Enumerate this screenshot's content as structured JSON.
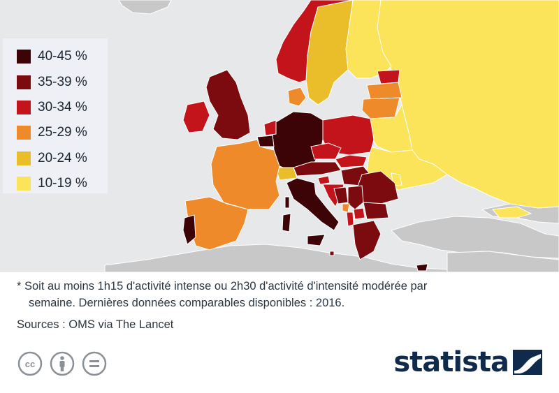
{
  "colors": {
    "sea": "#e7e8ea",
    "non_data_land": "#c8c8c8",
    "border": "#ffffff",
    "text": "#2b3640",
    "brand": "#0f2a4a"
  },
  "legend": [
    {
      "label": "40-45 %",
      "color": "#3d0407"
    },
    {
      "label": "35-39 %",
      "color": "#7b0b0f"
    },
    {
      "label": "30-34 %",
      "color": "#c3141c"
    },
    {
      "label": "25-29 %",
      "color": "#ef8a2a"
    },
    {
      "label": "20-24 %",
      "color": "#e9be2a"
    },
    {
      "label": "10-19 %",
      "color": "#fbe35a"
    }
  ],
  "footnote": {
    "line1": "* Soit au moins 1h15 d'activité intense ou 2h30 d'activité d'intensité modérée par",
    "line2": "semaine. Dernières données comparables disponibles : 2016."
  },
  "sources": "Sources : OMS via The Lancet",
  "brand": "statista",
  "license_icons": [
    "creative-commons-icon",
    "attribution-icon",
    "no-derivatives-icon"
  ],
  "map_categories": {
    "Germany": "40-45 %",
    "Italy": "40-45 %",
    "Portugal": "40-45 %",
    "Belgium": "40-45 %",
    "Cyprus": "40-45 %",
    "United Kingdom": "35-39 %",
    "Greece": "35-39 %",
    "Romania": "35-39 %",
    "Bulgaria": "35-39 %",
    "Hungary": "35-39 %",
    "Serbia": "35-39 %",
    "Austria": "35-39 %",
    "Bosnia and Herzegovina": "35-39 %",
    "Luxembourg": "35-39 %",
    "Malta": "35-39 %",
    "Ireland": "30-34 %",
    "Norway": "30-34 %",
    "Poland": "30-34 %",
    "Czech Republic": "30-34 %",
    "Slovakia": "30-34 %",
    "Estonia": "30-34 %",
    "Slovenia": "30-34 %",
    "Croatia": "30-34 %",
    "Netherlands": "30-34 %",
    "Macedonia": "30-34 %",
    "Albania": "30-34 %",
    "France": "25-29 %",
    "Spain": "25-29 %",
    "Denmark": "25-29 %",
    "Lithuania": "25-29 %",
    "Latvia": "25-29 %",
    "Montenegro": "25-29 %",
    "Sweden": "20-24 %",
    "Switzerland": "20-24 %",
    "Finland": "10-19 %",
    "Russia": "10-19 %",
    "Ukraine": "10-19 %",
    "Belarus": "10-19 %",
    "Moldova": "10-19 %",
    "Georgia": "10-19 %"
  }
}
